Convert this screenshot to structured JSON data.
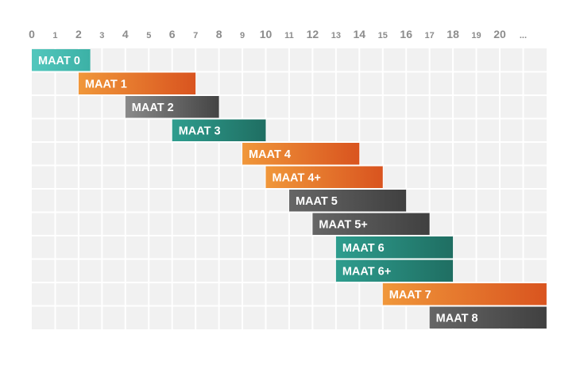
{
  "chart_data": {
    "type": "bar",
    "orientation": "horizontal-range",
    "title": "",
    "xlabel": "",
    "ylabel": "",
    "x_ticks": [
      "0",
      "1",
      "2",
      "3",
      "4",
      "5",
      "6",
      "7",
      "8",
      "9",
      "10",
      "11",
      "12",
      "13",
      "14",
      "15",
      "16",
      "17",
      "18",
      "19",
      "20",
      "..."
    ],
    "xlim": [
      0,
      22
    ],
    "grid": true,
    "legend": "none",
    "series": [
      {
        "label": "MAAT 0",
        "start": 0,
        "end": 2.5,
        "color_from": "#52c7bd",
        "color_to": "#3cb1a6"
      },
      {
        "label": "MAAT 1",
        "start": 2,
        "end": 7,
        "color_from": "#f0973a",
        "color_to": "#d9541f"
      },
      {
        "label": "MAAT 2",
        "start": 4,
        "end": 8,
        "color_from": "#8a8a8a",
        "color_to": "#444444"
      },
      {
        "label": "MAAT 3",
        "start": 6,
        "end": 10,
        "color_from": "#2e9d8e",
        "color_to": "#1f6e62"
      },
      {
        "label": "MAAT 4",
        "start": 9,
        "end": 14,
        "color_from": "#f0973a",
        "color_to": "#d9541f"
      },
      {
        "label": "MAAT 4+",
        "start": 10,
        "end": 15,
        "color_from": "#f0973a",
        "color_to": "#d9541f"
      },
      {
        "label": "MAAT 5",
        "start": 11,
        "end": 16,
        "color_from": "#666666",
        "color_to": "#404040"
      },
      {
        "label": "MAAT 5+",
        "start": 12,
        "end": 17,
        "color_from": "#666666",
        "color_to": "#404040"
      },
      {
        "label": "MAAT 6",
        "start": 13,
        "end": 18,
        "color_from": "#2e9d8e",
        "color_to": "#1f6e62"
      },
      {
        "label": "MAAT 6+",
        "start": 13,
        "end": 18,
        "color_from": "#2e9d8e",
        "color_to": "#1f6e62"
      },
      {
        "label": "MAAT 7",
        "start": 15,
        "end": 22,
        "color_from": "#f0973a",
        "color_to": "#d9541f"
      },
      {
        "label": "MAAT 8",
        "start": 17,
        "end": 22,
        "color_from": "#666666",
        "color_to": "#404040"
      }
    ]
  },
  "colors": {
    "cell": "#f1f1f1",
    "grid_line": "#ffffff",
    "tick_text": "#8c8c8c",
    "label_text": "#ffffff"
  }
}
